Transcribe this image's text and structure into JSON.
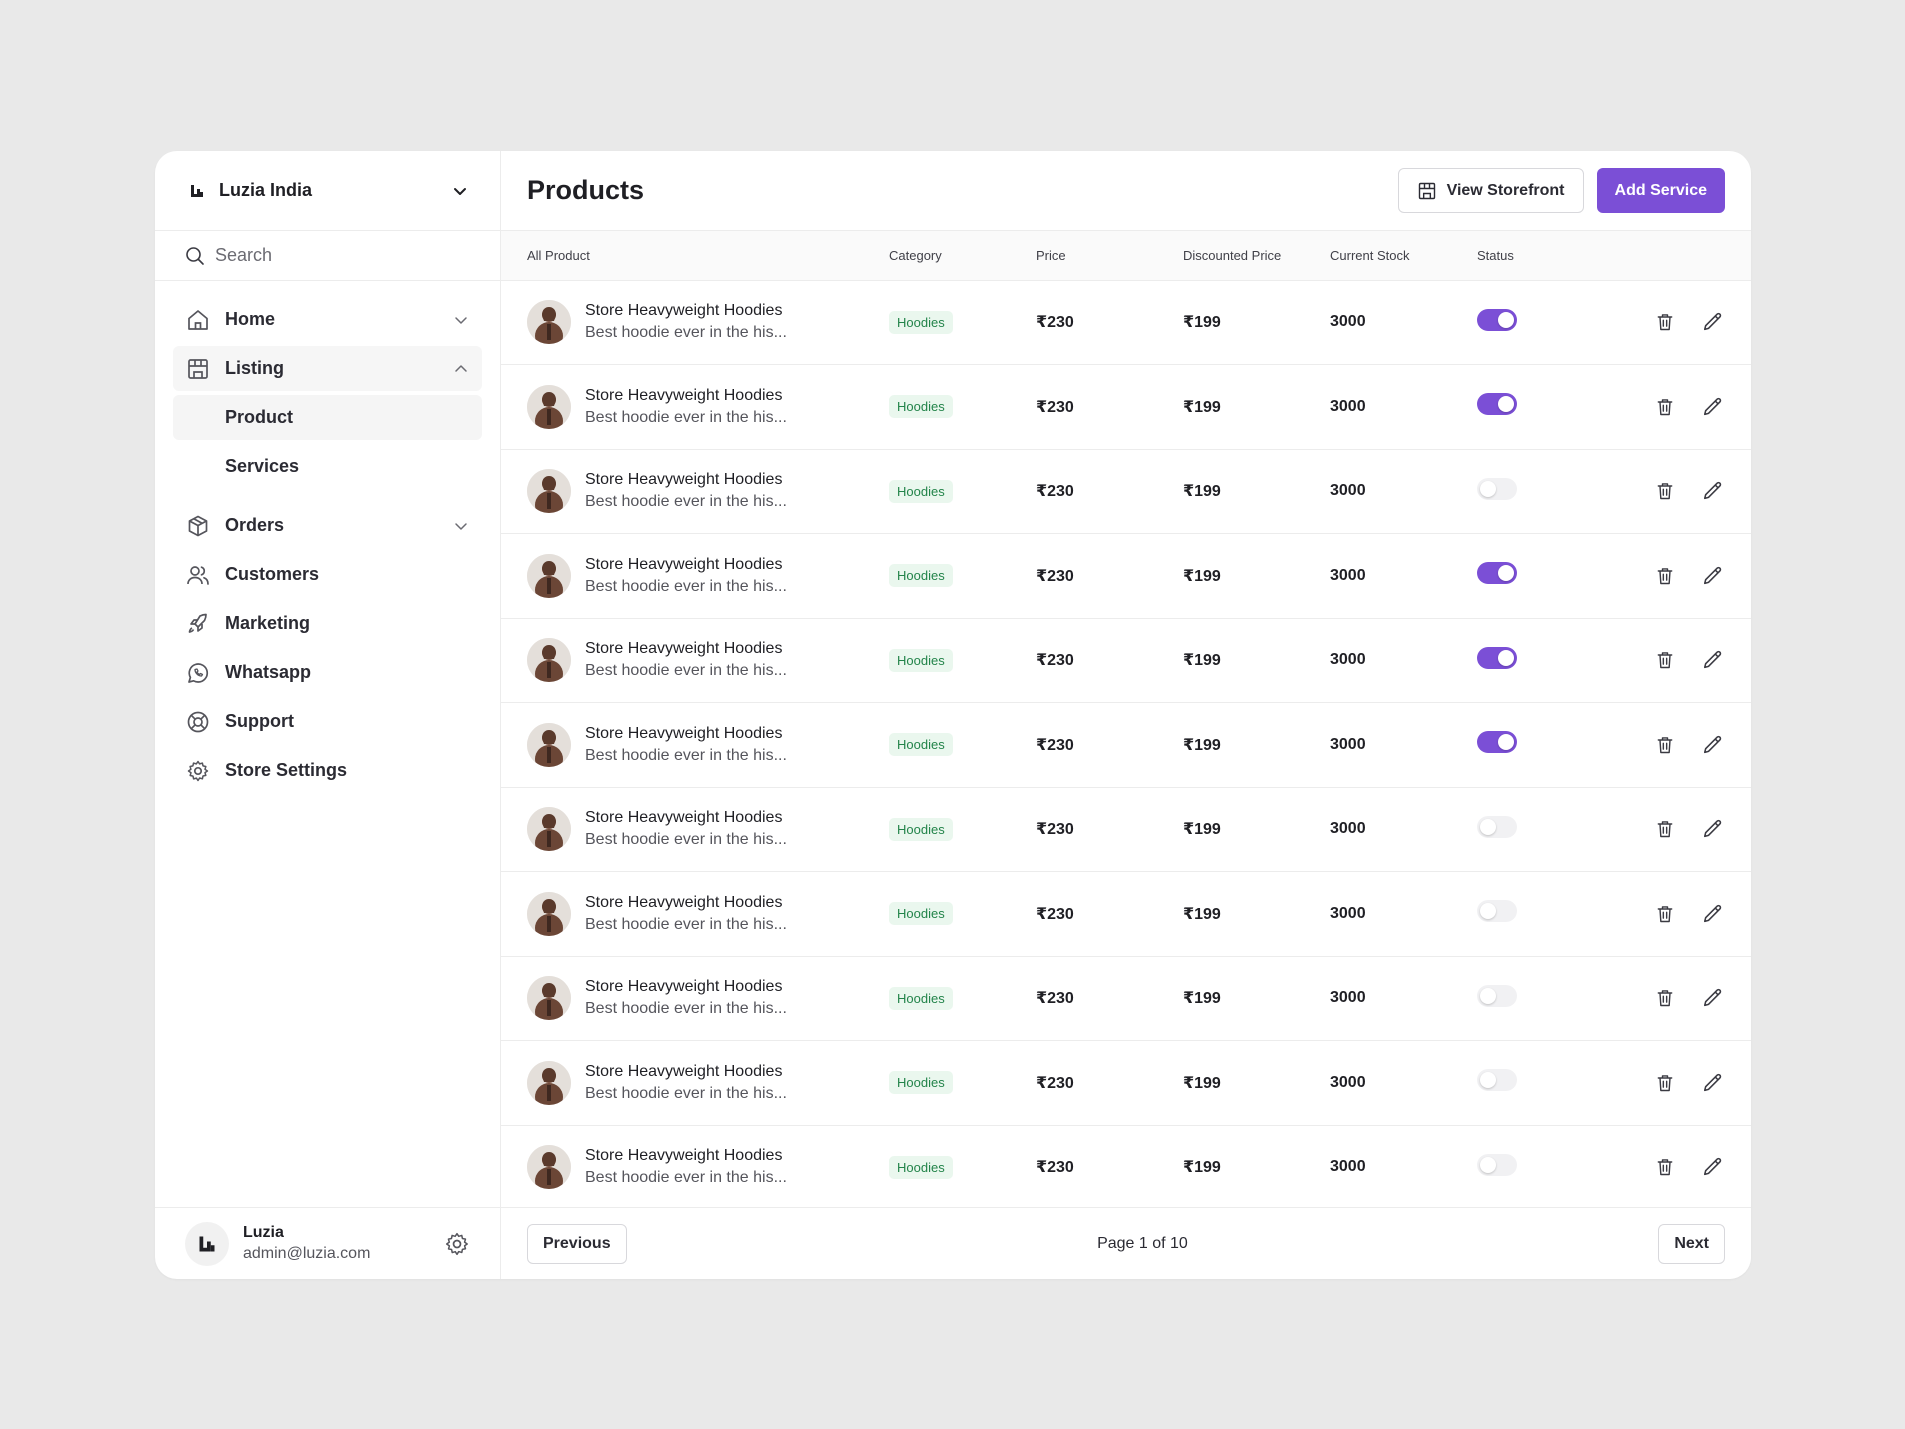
{
  "store": {
    "name": "Luzia India"
  },
  "search": {
    "placeholder": "Search"
  },
  "nav": {
    "home": "Home",
    "listing": "Listing",
    "listing_sub": [
      "Product",
      "Services"
    ],
    "orders": "Orders",
    "customers": "Customers",
    "marketing": "Marketing",
    "whatsapp": "Whatsapp",
    "support": "Support",
    "store_settings": "Store Settings"
  },
  "user": {
    "name": "Luzia",
    "email": "admin@luzia.com"
  },
  "header": {
    "title": "Products",
    "view_storefront": "View Storefront",
    "add_service": "Add Service"
  },
  "columns": [
    "All Product",
    "Category",
    "Price",
    "Discounted Price",
    "Current Stock",
    "Status"
  ],
  "products": [
    {
      "name": "Store Heavyweight Hoodies",
      "desc": "Best hoodie ever in the his...",
      "category": "Hoodies",
      "price": "₹230",
      "discounted": "₹199",
      "stock": "3000",
      "status": true
    },
    {
      "name": "Store Heavyweight Hoodies",
      "desc": "Best hoodie ever in the his...",
      "category": "Hoodies",
      "price": "₹230",
      "discounted": "₹199",
      "stock": "3000",
      "status": true
    },
    {
      "name": "Store Heavyweight Hoodies",
      "desc": "Best hoodie ever in the his...",
      "category": "Hoodies",
      "price": "₹230",
      "discounted": "₹199",
      "stock": "3000",
      "status": false
    },
    {
      "name": "Store Heavyweight Hoodies",
      "desc": "Best hoodie ever in the his...",
      "category": "Hoodies",
      "price": "₹230",
      "discounted": "₹199",
      "stock": "3000",
      "status": true
    },
    {
      "name": "Store Heavyweight Hoodies",
      "desc": "Best hoodie ever in the his...",
      "category": "Hoodies",
      "price": "₹230",
      "discounted": "₹199",
      "stock": "3000",
      "status": true
    },
    {
      "name": "Store Heavyweight Hoodies",
      "desc": "Best hoodie ever in the his...",
      "category": "Hoodies",
      "price": "₹230",
      "discounted": "₹199",
      "stock": "3000",
      "status": true
    },
    {
      "name": "Store Heavyweight Hoodies",
      "desc": "Best hoodie ever in the his...",
      "category": "Hoodies",
      "price": "₹230",
      "discounted": "₹199",
      "stock": "3000",
      "status": false
    },
    {
      "name": "Store Heavyweight Hoodies",
      "desc": "Best hoodie ever in the his...",
      "category": "Hoodies",
      "price": "₹230",
      "discounted": "₹199",
      "stock": "3000",
      "status": false
    },
    {
      "name": "Store Heavyweight Hoodies",
      "desc": "Best hoodie ever in the his...",
      "category": "Hoodies",
      "price": "₹230",
      "discounted": "₹199",
      "stock": "3000",
      "status": false
    },
    {
      "name": "Store Heavyweight Hoodies",
      "desc": "Best hoodie ever in the his...",
      "category": "Hoodies",
      "price": "₹230",
      "discounted": "₹199",
      "stock": "3000",
      "status": false
    },
    {
      "name": "Store Heavyweight Hoodies",
      "desc": "Best hoodie ever in the his...",
      "category": "Hoodies",
      "price": "₹230",
      "discounted": "₹199",
      "stock": "3000",
      "status": false
    }
  ],
  "pagination": {
    "previous": "Previous",
    "info": "Page 1 of 10",
    "next": "Next"
  },
  "colors": {
    "accent": "#7b4fd6",
    "badge_bg": "#eaf7ee",
    "badge_text": "#23844a"
  },
  "icons": [
    "logo-icon",
    "chevron-down-icon",
    "search-icon",
    "home-icon",
    "store-icon",
    "chevron-up-icon",
    "box-icon",
    "users-icon",
    "rocket-icon",
    "whatsapp-icon",
    "lifebuoy-icon",
    "gear-icon",
    "trash-icon",
    "pencil-icon"
  ]
}
